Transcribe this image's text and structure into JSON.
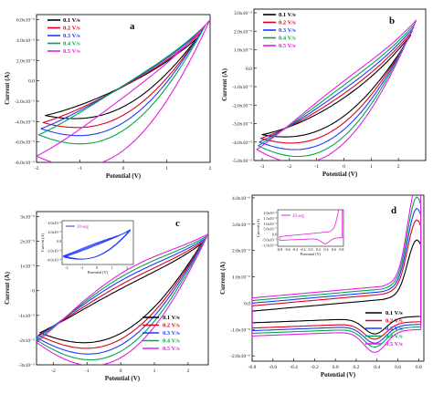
{
  "colors": {
    "0.1 V/s": "#000000",
    "0.2 V/s": "#e0001a",
    "0.3 V/s": "#1a3cff",
    "0.4 V/s": "#00a651",
    "0.5 V/s": "#e020e0",
    "inset_c": "#1a3cff",
    "inset_d": "#e020e0"
  },
  "chart_data": [
    {
      "panel": "a",
      "type": "line",
      "xlabel": "Potential (V)",
      "ylabel": "Current (A)",
      "xlim": [
        -2,
        2
      ],
      "ylim": [
        -8e-05,
        6.5e-05
      ],
      "x_ticks": [
        "-2",
        "-1",
        "0",
        "1",
        "2"
      ],
      "y_ticks": [
        "6.0x10⁻⁵",
        "4.0x10⁻⁵",
        "2.0x10⁻⁵",
        "0.0",
        "-2.0x10⁻⁵",
        "-4.0x10⁻⁵",
        "-6.0x10⁻⁵",
        "-8.0x10⁻⁵"
      ],
      "legend_position": "top-left",
      "curve_shape": "ellipse_cv",
      "series": [
        {
          "name": "0.1 V/s",
          "x_max": 1.7,
          "i_max": 4.2e-05,
          "x_min": -1.8,
          "i_min": -3.4e-05,
          "width": 1e-05
        },
        {
          "name": "0.2 V/s",
          "x_max": 1.8,
          "i_max": 4.8e-05,
          "x_min": -1.85,
          "i_min": -4.1e-05,
          "width": 1.4e-05
        },
        {
          "name": "0.3 V/s",
          "x_max": 1.85,
          "i_max": 5.2e-05,
          "x_min": -1.9,
          "i_min": -4.7e-05,
          "width": 1.8e-05
        },
        {
          "name": "0.4 V/s",
          "x_max": 1.9,
          "i_max": 5.5e-05,
          "x_min": -1.95,
          "i_min": -5.3e-05,
          "width": 2.2e-05
        },
        {
          "name": "0.5 V/s",
          "x_max": 2.0,
          "i_max": 6e-05,
          "x_min": -2.0,
          "i_min": -7.4e-05,
          "width": 2.6e-05
        }
      ]
    },
    {
      "panel": "b",
      "type": "line",
      "xlabel": "Potential (V)",
      "ylabel": "Current (A)",
      "xlim": [
        -3.3,
        3
      ],
      "ylim": [
        -5e-05,
        3.2e-05
      ],
      "x_ticks": [
        "-3",
        "-2",
        "-1",
        "0",
        "1",
        "2"
      ],
      "y_ticks": [
        "3.0x10⁻⁵",
        "2.0x10⁻⁵",
        "1.0x10⁻⁵",
        "0.0",
        "-1.0x10⁻⁵",
        "-2.0x10⁻⁵",
        "-3.0x10⁻⁵",
        "-4.0x10⁻⁵",
        "-5.0x10⁻⁵"
      ],
      "legend_position": "top-left",
      "curve_shape": "ellipse_cv",
      "series": [
        {
          "name": "0.1 V/s",
          "x_max": 2.45,
          "i_max": 1.8e-05,
          "x_min": -3.0,
          "i_min": -3.6e-05,
          "width": 5e-06
        },
        {
          "name": "0.2 V/s",
          "x_max": 2.5,
          "i_max": 2e-05,
          "x_min": -3.05,
          "i_min": -3.8e-05,
          "width": 8e-06
        },
        {
          "name": "0.3 V/s",
          "x_max": 2.55,
          "i_max": 2.2e-05,
          "x_min": -3.1,
          "i_min": -4e-05,
          "width": 1.1e-05
        },
        {
          "name": "0.4 V/s",
          "x_max": 2.6,
          "i_max": 2.4e-05,
          "x_min": -3.15,
          "i_min": -4.2e-05,
          "width": 1.4e-05
        },
        {
          "name": "0.5 V/s",
          "x_max": 2.65,
          "i_max": 2.6e-05,
          "x_min": -3.2,
          "i_min": -4.4e-05,
          "width": 1.7e-05
        }
      ]
    },
    {
      "panel": "c",
      "type": "line",
      "xlabel": "Potential (V)",
      "ylabel": "Current (A)",
      "xlim": [
        -2.5,
        2.6
      ],
      "ylim": [
        -3e-05,
        3.2e-05
      ],
      "x_ticks": [
        "-2",
        "-1",
        "0",
        "1",
        "2"
      ],
      "y_ticks": [
        "3x10⁻⁵",
        "2x10⁻⁵",
        "1x10⁻⁵",
        "0",
        "-1x10⁻⁵",
        "-2x10⁻⁵",
        "-3x10⁻⁵"
      ],
      "legend_position": "bottom-right",
      "curve_shape": "ellipse_cv",
      "series": [
        {
          "name": "0.1 V/s",
          "x_max": 2.4,
          "i_max": 1.9e-05,
          "x_min": -2.4,
          "i_min": -1.7e-05,
          "width": 9e-06
        },
        {
          "name": "0.2 V/s",
          "x_max": 2.45,
          "i_max": 2e-05,
          "x_min": -2.45,
          "i_min": -1.8e-05,
          "width": 1.1e-05
        },
        {
          "name": "0.3 V/s",
          "x_max": 2.5,
          "i_max": 2.1e-05,
          "x_min": -2.5,
          "i_min": -1.9e-05,
          "width": 1.3e-05
        },
        {
          "name": "0.4 V/s",
          "x_max": 2.55,
          "i_max": 2.2e-05,
          "x_min": -2.5,
          "i_min": -2e-05,
          "width": 1.5e-05
        },
        {
          "name": "0.5 V/s",
          "x_max": 2.6,
          "i_max": 2.3e-05,
          "x_min": -2.5,
          "i_min": -2.1e-05,
          "width": 1.7e-05
        }
      ],
      "inset": {
        "legend": "20 seg",
        "xlabel": "Potential (V)",
        "ylabel": "Current (A)",
        "x_ticks": [
          "-2",
          "-1",
          "0",
          "1",
          "2"
        ],
        "y_ticks": [
          "4.0x10⁻⁵",
          "2.0x10⁻⁵",
          "0.0",
          "-2.0x10⁻⁵",
          "-4.0x10⁻⁵"
        ],
        "xlim": [
          -2.3,
          2.4
        ],
        "ylim": [
          -5e-05,
          4.5e-05
        ],
        "x_max": 2.2,
        "i_max": 2.6e-05,
        "x_min": -2.2,
        "i_min": -3.4e-05,
        "width": 1.2e-05
      }
    },
    {
      "panel": "d",
      "type": "line",
      "xlabel": "Potential (V)",
      "ylabel": "Current (A)",
      "xlim": [
        -0.8,
        0.85
      ],
      "ylim": [
        -2.2e-06,
        4.1e-06
      ],
      "x_ticks": [
        "-0.8",
        "-0.6",
        "-0.4",
        "-0.2",
        "0.0",
        "0.2",
        "0.4",
        "0.6",
        "0.8"
      ],
      "y_ticks": [
        "4.0x10⁻⁶",
        "3.0x10⁻⁶",
        "2.0x10⁻⁶",
        "1.0x10⁻⁶",
        "0.0",
        "-1.0x10⁻⁶",
        "-2.0x10⁻⁶"
      ],
      "legend_position": "bottom-right",
      "curve_shape": "redox_cv",
      "series": [
        {
          "name": "0.1 V/s",
          "ipa": 1.7e-06,
          "ipc": -1.1e-06,
          "ia0": -3e-07,
          "ic0": -5e-07
        },
        {
          "name": "0.2 V/s",
          "ipa": 2.4e-06,
          "ipc": -1.3e-06,
          "ia0": -1e-07,
          "ic0": -7e-07
        },
        {
          "name": "0.3 V/s",
          "ipa": 2.8e-06,
          "ipc": -1.45e-06,
          "ia0": 0.0,
          "ic0": -8e-07
        },
        {
          "name": "0.4 V/s",
          "ipa": 3.2e-06,
          "ipc": -1.6e-06,
          "ia0": 1e-07,
          "ic0": -9e-07
        },
        {
          "name": "0.5 V/s",
          "ipa": 3.6e-06,
          "ipc": -1.8e-06,
          "ia0": 2e-07,
          "ic0": -1e-06
        }
      ],
      "inset": {
        "legend": "20 seg",
        "xlabel": "Potential (V)",
        "ylabel": "Current (A)",
        "x_ticks": [
          "-0.8",
          "-0.6",
          "-0.4",
          "-0.2",
          "0.0",
          "0.2",
          "0.4",
          "0.6",
          "0.8"
        ],
        "y_ticks": [
          "2.0x10⁻⁶",
          "1.5x10⁻⁶",
          "1.0x10⁻⁶",
          "5.0x10⁻⁷",
          "0.0",
          "-5.0x10⁻⁷",
          "-1.0x10⁻⁶"
        ],
        "xlim": [
          -0.85,
          0.85
        ],
        "ylim": [
          -1.1e-06,
          2.3e-06
        ],
        "ipa": 2e-06,
        "ipc": -8e-07,
        "ia0": -2e-07,
        "ic0": -3e-07
      }
    }
  ]
}
